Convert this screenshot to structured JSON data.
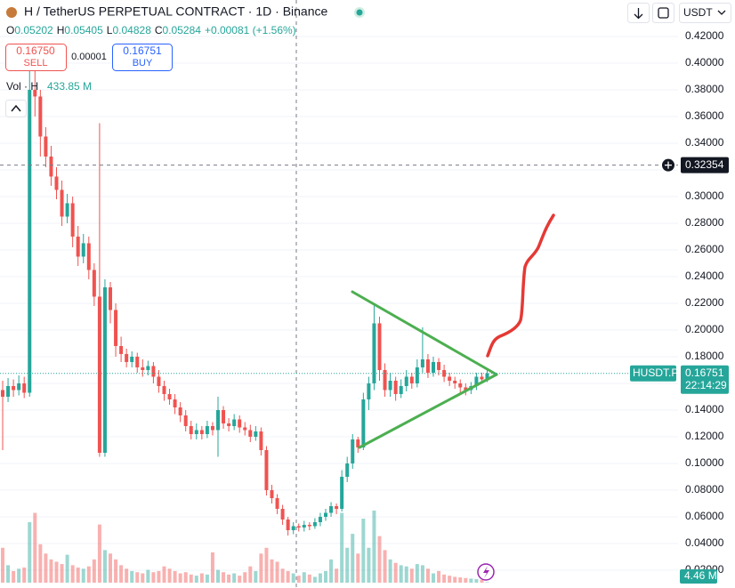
{
  "chart_data": {
    "type": "candlestick",
    "title": "H / TetherUS PERPETUAL CONTRACT · 1D · Binance",
    "ohlc_legend": [
      {
        "key": "O",
        "value": "0.05202"
      },
      {
        "key": "H",
        "value": "0.05405"
      },
      {
        "key": "L",
        "value": "0.04828"
      },
      {
        "key": "C",
        "value": "0.05284"
      }
    ],
    "change": "+0.00081 (+1.56%)",
    "sell_price": "0.16750",
    "sell_label": "SELL",
    "spread": "0.00001",
    "buy_price": "0.16751",
    "buy_label": "BUY",
    "volume_label": "Vol · H",
    "volume_value": "433.85 M",
    "quote_currency": "USDT",
    "up_color": "#26a69a",
    "down_color": "#ef5350",
    "ylim": [
      0.00667,
      0.4473
    ],
    "yticks": [
      {
        "value": 0.02,
        "label": "0.02000"
      },
      {
        "value": 0.04,
        "label": "0.04000"
      },
      {
        "value": 0.06,
        "label": "0.06000"
      },
      {
        "value": 0.08,
        "label": "0.08000"
      },
      {
        "value": 0.1,
        "label": "0.10000"
      },
      {
        "value": 0.12,
        "label": "0.12000"
      },
      {
        "value": 0.14,
        "label": "0.14000"
      },
      {
        "value": 0.16,
        "label": "0.16000"
      },
      {
        "value": 0.18,
        "label": "0.18000"
      },
      {
        "value": 0.2,
        "label": "0.20000"
      },
      {
        "value": 0.22,
        "label": "0.22000"
      },
      {
        "value": 0.24,
        "label": "0.24000"
      },
      {
        "value": 0.26,
        "label": "0.26000"
      },
      {
        "value": 0.28,
        "label": "0.28000"
      },
      {
        "value": 0.3,
        "label": "0.30000"
      },
      {
        "value": 0.32,
        "label": "0.32000"
      },
      {
        "value": 0.34,
        "label": "0.34000"
      },
      {
        "value": 0.36,
        "label": "0.36000"
      },
      {
        "value": 0.38,
        "label": "0.38000"
      },
      {
        "value": 0.4,
        "label": "0.40000"
      },
      {
        "value": 0.42,
        "label": "0.42000"
      }
    ],
    "crosshair_price": 0.32354,
    "last_symbol": "HUSDT.P",
    "last_price": 0.16751,
    "countdown": "22:14:29",
    "volume_ylim": [
      0,
      650
    ],
    "volume_last_label": "4.46 M",
    "open": [
      0.155,
      0.15,
      0.158,
      0.155,
      0.16,
      0.153,
      0.38,
      0.375,
      0.345,
      0.33,
      0.315,
      0.305,
      0.285,
      0.295,
      0.27,
      0.255,
      0.265,
      0.245,
      0.225,
      0.108,
      0.232,
      0.215,
      0.188,
      0.182,
      0.176,
      0.18,
      0.172,
      0.17,
      0.173,
      0.165,
      0.158,
      0.152,
      0.148,
      0.142,
      0.136,
      0.128,
      0.122,
      0.125,
      0.122,
      0.128,
      0.125,
      0.14,
      0.13,
      0.128,
      0.133,
      0.127,
      0.125,
      0.12,
      0.124,
      0.11,
      0.08,
      0.074,
      0.066,
      0.058,
      0.05,
      0.053,
      0.052,
      0.054,
      0.053,
      0.056,
      0.06,
      0.063,
      0.068,
      0.066,
      0.09,
      0.1,
      0.118,
      0.112,
      0.148,
      0.16,
      0.205,
      0.17,
      0.155,
      0.162,
      0.152,
      0.158,
      0.165,
      0.16,
      0.172,
      0.178,
      0.168,
      0.176,
      0.17,
      0.165,
      0.162,
      0.16,
      0.157,
      0.155,
      0.158,
      0.165,
      0.163
    ],
    "high": [
      0.162,
      0.164,
      0.163,
      0.166,
      0.165,
      0.4,
      0.395,
      0.38,
      0.352,
      0.338,
      0.322,
      0.312,
      0.302,
      0.3,
      0.278,
      0.272,
      0.27,
      0.25,
      0.355,
      0.238,
      0.236,
      0.22,
      0.195,
      0.186,
      0.184,
      0.183,
      0.178,
      0.177,
      0.176,
      0.17,
      0.162,
      0.156,
      0.152,
      0.146,
      0.14,
      0.132,
      0.13,
      0.128,
      0.132,
      0.131,
      0.15,
      0.143,
      0.134,
      0.137,
      0.136,
      0.131,
      0.129,
      0.128,
      0.127,
      0.113,
      0.084,
      0.077,
      0.069,
      0.06,
      0.056,
      0.055,
      0.057,
      0.056,
      0.059,
      0.063,
      0.066,
      0.071,
      0.07,
      0.095,
      0.105,
      0.122,
      0.12,
      0.153,
      0.165,
      0.22,
      0.21,
      0.175,
      0.168,
      0.165,
      0.163,
      0.17,
      0.168,
      0.178,
      0.202,
      0.182,
      0.18,
      0.179,
      0.174,
      0.168,
      0.165,
      0.163,
      0.16,
      0.161,
      0.168,
      0.168,
      0.17
    ],
    "low": [
      0.11,
      0.146,
      0.15,
      0.151,
      0.149,
      0.15,
      0.36,
      0.33,
      0.322,
      0.308,
      0.298,
      0.278,
      0.28,
      0.262,
      0.248,
      0.25,
      0.238,
      0.218,
      0.105,
      0.105,
      0.205,
      0.18,
      0.176,
      0.172,
      0.172,
      0.168,
      0.165,
      0.166,
      0.16,
      0.153,
      0.147,
      0.144,
      0.137,
      0.131,
      0.124,
      0.118,
      0.118,
      0.118,
      0.119,
      0.121,
      0.105,
      0.126,
      0.124,
      0.125,
      0.123,
      0.121,
      0.116,
      0.117,
      0.106,
      0.076,
      0.07,
      0.062,
      0.054,
      0.046,
      0.047,
      0.049,
      0.049,
      0.05,
      0.051,
      0.053,
      0.057,
      0.06,
      0.062,
      0.064,
      0.086,
      0.096,
      0.108,
      0.11,
      0.14,
      0.155,
      0.162,
      0.15,
      0.15,
      0.147,
      0.149,
      0.154,
      0.156,
      0.157,
      0.168,
      0.164,
      0.165,
      0.166,
      0.161,
      0.158,
      0.156,
      0.153,
      0.151,
      0.152,
      0.155,
      0.16,
      0.161
    ],
    "close": [
      0.15,
      0.158,
      0.155,
      0.16,
      0.153,
      0.38,
      0.375,
      0.345,
      0.33,
      0.315,
      0.305,
      0.285,
      0.295,
      0.27,
      0.255,
      0.265,
      0.245,
      0.225,
      0.108,
      0.232,
      0.215,
      0.188,
      0.182,
      0.176,
      0.18,
      0.172,
      0.17,
      0.173,
      0.165,
      0.158,
      0.152,
      0.148,
      0.142,
      0.136,
      0.128,
      0.122,
      0.125,
      0.122,
      0.128,
      0.125,
      0.14,
      0.13,
      0.128,
      0.133,
      0.127,
      0.125,
      0.12,
      0.124,
      0.11,
      0.08,
      0.074,
      0.066,
      0.058,
      0.05,
      0.053,
      0.052,
      0.054,
      0.053,
      0.056,
      0.06,
      0.063,
      0.068,
      0.066,
      0.09,
      0.1,
      0.118,
      0.112,
      0.148,
      0.16,
      0.205,
      0.17,
      0.155,
      0.162,
      0.152,
      0.158,
      0.165,
      0.16,
      0.172,
      0.178,
      0.168,
      0.176,
      0.17,
      0.165,
      0.162,
      0.16,
      0.157,
      0.155,
      0.158,
      0.165,
      0.163,
      0.1675
    ],
    "volume": [
      300,
      150,
      100,
      120,
      130,
      520,
      600,
      330,
      250,
      200,
      180,
      160,
      240,
      150,
      130,
      120,
      140,
      200,
      500,
      280,
      250,
      200,
      150,
      120,
      100,
      90,
      80,
      110,
      90,
      100,
      140,
      120,
      100,
      80,
      90,
      70,
      60,
      80,
      70,
      260,
      110,
      90,
      70,
      80,
      60,
      90,
      140,
      100,
      250,
      300,
      200,
      180,
      120,
      100,
      80,
      60,
      90,
      70,
      50,
      80,
      100,
      200,
      120,
      600,
      300,
      420,
      250,
      550,
      300,
      620,
      400,
      280,
      200,
      170,
      150,
      140,
      120,
      160,
      150,
      120,
      80,
      100,
      70,
      60,
      50,
      45,
      40,
      35,
      30,
      25,
      4.46
    ]
  }
}
